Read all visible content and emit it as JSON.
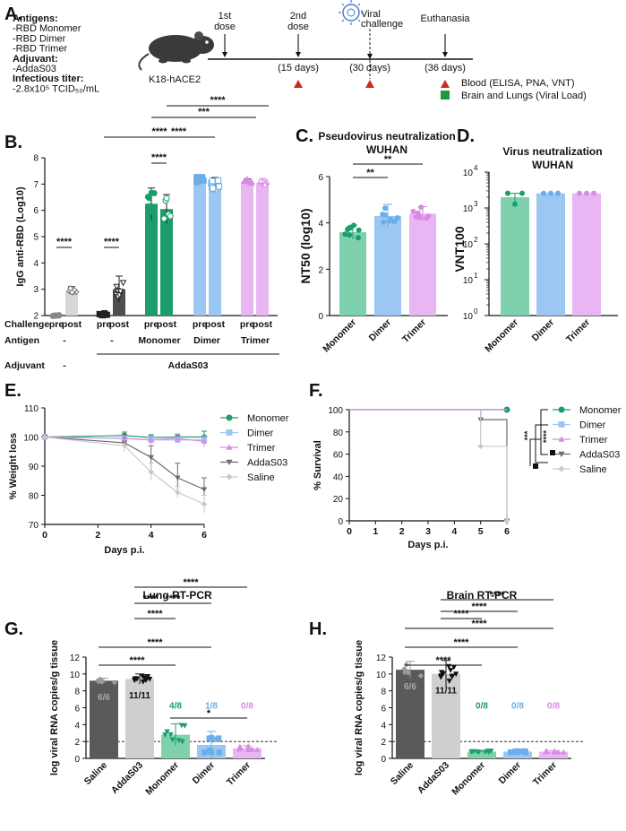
{
  "colors": {
    "monomer": "#1b9e6b",
    "monomer_light": "#7fd1ad",
    "dimer": "#9cc7f2",
    "dimer_dark": "#6aaeea",
    "trimer": "#e8b6f2",
    "trimer_dark": "#d88be6",
    "addas03": "#6b6b6b",
    "saline": "#c9c9c9",
    "axis": "#111111",
    "red": "#cf2a1f",
    "green": "#1f9a3a"
  },
  "panelA": {
    "label": "A.",
    "info": [
      {
        "text": "Antigens:",
        "bold": true
      },
      {
        "text": "-RBD Monomer",
        "bold": false
      },
      {
        "text": "-RBD Dimer",
        "bold": false
      },
      {
        "text": "-RBD Trimer",
        "bold": false
      },
      {
        "text": "Adjuvant:",
        "bold": true
      },
      {
        "text": "-AddaS03",
        "bold": false
      },
      {
        "text": "Infectious titer:",
        "bold": true
      },
      {
        "text": "-2.8x10⁵ TCID₅₀/mL",
        "bold": false
      }
    ],
    "mouse_label": "K18-hACE2",
    "events": [
      {
        "label1": "1st",
        "label2": "dose",
        "day": null
      },
      {
        "label1": "2nd",
        "label2": "dose",
        "day": "(15 days)"
      },
      {
        "label1": "Viral",
        "label2": "challenge",
        "day": "(30 days)"
      },
      {
        "label1": "Euthanasia",
        "label2": "",
        "day": "(36 days)"
      }
    ],
    "legend": [
      {
        "shape": "triangle",
        "text": "Blood (ELISA, PNA, VNT)"
      },
      {
        "shape": "square",
        "text": "Brain and Lungs (Viral Load)"
      }
    ]
  },
  "panelB": {
    "label": "B.",
    "row_labels": [
      "Challenge",
      "Antigen",
      "Adjuvant"
    ],
    "challenge_labels": [
      "pre",
      "post",
      "pre",
      "post",
      "pre",
      "post",
      "pre",
      "post",
      "pre",
      "post"
    ],
    "antigen_labels": [
      "-",
      "-",
      "Monomer",
      "Dimer",
      "Trimer"
    ],
    "adjuvant_labels": [
      "-",
      "AddaS03"
    ],
    "significance": [
      "****",
      "****",
      "****",
      "****",
      "***",
      "****",
      "****"
    ]
  },
  "panelC": {
    "label": "C."
  },
  "panelD": {
    "label": "D."
  },
  "panelE": {
    "label": "E."
  },
  "panelF": {
    "label": "F.",
    "significance": [
      "***",
      "****"
    ]
  },
  "panelG": {
    "label": "G.",
    "fractions": [
      "6/6",
      "11/11",
      "4/8",
      "1/8",
      "0/8"
    ],
    "significance": [
      "****",
      "****",
      "****",
      "****",
      "****",
      "****",
      "*"
    ]
  },
  "panelH": {
    "label": "H.",
    "fractions": [
      "6/6",
      "11/11",
      "0/8",
      "0/8",
      "0/8"
    ],
    "significance": [
      "****",
      "****",
      "****",
      "****",
      "****",
      "****"
    ]
  },
  "chart_data": [
    {
      "id": "B",
      "type": "bar",
      "title": "",
      "xlabel": "",
      "ylabel": "IgG anti-RBD (Log10)",
      "ylim": [
        2,
        8
      ],
      "yticks": [
        2,
        3,
        4,
        5,
        6,
        7,
        8
      ],
      "series": [
        {
          "name": "Saline pre",
          "value": 2.0,
          "err": 0.02
        },
        {
          "name": "Saline post",
          "value": 2.95,
          "err": 0.15
        },
        {
          "name": "AddaS03 pre",
          "value": 2.05,
          "err": 0.05
        },
        {
          "name": "AddaS03 post",
          "value": 3.0,
          "err": 0.5
        },
        {
          "name": "Monomer pre",
          "value": 6.25,
          "err": 0.6
        },
        {
          "name": "Monomer post",
          "value": 6.05,
          "err": 0.55
        },
        {
          "name": "Dimer pre",
          "value": 7.15,
          "err": 0.15
        },
        {
          "name": "Dimer post",
          "value": 7.0,
          "err": 0.25
        },
        {
          "name": "Trimer pre",
          "value": 7.1,
          "err": 0.1
        },
        {
          "name": "Trimer post",
          "value": 7.05,
          "err": 0.1
        }
      ]
    },
    {
      "id": "C",
      "type": "bar",
      "title": "Pseudovirus neutralization",
      "subtitle": "WUHAN",
      "ylabel": "NT50 (log10)",
      "ylim": [
        0,
        6
      ],
      "yticks": [
        0,
        2,
        4,
        6
      ],
      "categories": [
        "Monomer",
        "Dimer",
        "Trimer"
      ],
      "values": [
        3.6,
        4.3,
        4.4
      ],
      "errors": [
        0.3,
        0.5,
        0.3
      ],
      "significance": [
        "**",
        "**"
      ]
    },
    {
      "id": "D",
      "type": "bar",
      "title": "Virus neutralization",
      "subtitle": "WUHAN",
      "ylabel": "VNT100",
      "yscale": "log",
      "ylim": [
        1,
        10000
      ],
      "yticks": [
        "10^0",
        "10^1",
        "10^2",
        "10^3",
        "10^4"
      ],
      "categories": [
        "Monomer",
        "Dimer",
        "Trimer"
      ],
      "values": [
        2000,
        2560,
        2560
      ]
    },
    {
      "id": "E",
      "type": "line",
      "ylabel": "% Weight loss",
      "xlabel": "Days p.i.",
      "xlim": [
        0,
        6
      ],
      "ylim": [
        70,
        110
      ],
      "xticks": [
        0,
        2,
        4,
        6
      ],
      "yticks": [
        70,
        80,
        90,
        100,
        110
      ],
      "x": [
        0,
        3,
        4,
        5,
        6
      ],
      "series": [
        {
          "name": "Monomer",
          "values": [
            100,
            100.5,
            99.8,
            100,
            100
          ]
        },
        {
          "name": "Dimer",
          "values": [
            100,
            99.5,
            99,
            99,
            99
          ]
        },
        {
          "name": "Trimer",
          "values": [
            100,
            99.5,
            99,
            99.5,
            98.5
          ]
        },
        {
          "name": "AddaS03",
          "values": [
            100,
            98,
            93,
            86,
            82
          ]
        },
        {
          "name": "Saline",
          "values": [
            100,
            97,
            88,
            81,
            77
          ]
        }
      ]
    },
    {
      "id": "F",
      "type": "line",
      "ylabel": "% Survival",
      "xlabel": "Days p.i.",
      "xlim": [
        0,
        6
      ],
      "ylim": [
        0,
        100
      ],
      "xticks": [
        0,
        1,
        2,
        3,
        4,
        5,
        6
      ],
      "yticks": [
        0,
        20,
        40,
        60,
        80,
        100
      ],
      "series": [
        {
          "name": "Monomer",
          "values": [
            100,
            100,
            100
          ]
        },
        {
          "name": "Dimer",
          "values": [
            100,
            100,
            100
          ]
        },
        {
          "name": "Trimer",
          "values": [
            100,
            100,
            100
          ]
        },
        {
          "name": "AddaS03",
          "values": [
            100,
            91,
            0
          ]
        },
        {
          "name": "Saline",
          "values": [
            100,
            67,
            0
          ]
        }
      ],
      "x": [
        0,
        5,
        6
      ]
    },
    {
      "id": "G",
      "type": "bar",
      "title": "Lung RT-PCR",
      "ylabel": "log viral RNA copies/g tissue",
      "ylim": [
        0,
        12
      ],
      "yticks": [
        0,
        2,
        4,
        6,
        8,
        10,
        12
      ],
      "limit_of_detection": 2,
      "categories": [
        "Saline",
        "AddaS03",
        "Monomer",
        "Dimer",
        "Trimer"
      ],
      "values": [
        9.2,
        9.4,
        2.8,
        1.6,
        1.2
      ],
      "errors": [
        0.3,
        0.6,
        1.3,
        1.6,
        0.3
      ]
    },
    {
      "id": "H",
      "type": "bar",
      "title": "Brain RT-PCR",
      "ylabel": "log viral RNA copies/g tissue",
      "ylim": [
        0,
        12
      ],
      "yticks": [
        0,
        2,
        4,
        6,
        8,
        10,
        12
      ],
      "limit_of_detection": 2,
      "categories": [
        "Saline",
        "AddaS03",
        "Monomer",
        "Dimer",
        "Trimer"
      ],
      "values": [
        10.5,
        10.0,
        0.8,
        0.8,
        0.8
      ],
      "errors": [
        1.0,
        1.6,
        0.1,
        0.1,
        0.1
      ]
    }
  ]
}
